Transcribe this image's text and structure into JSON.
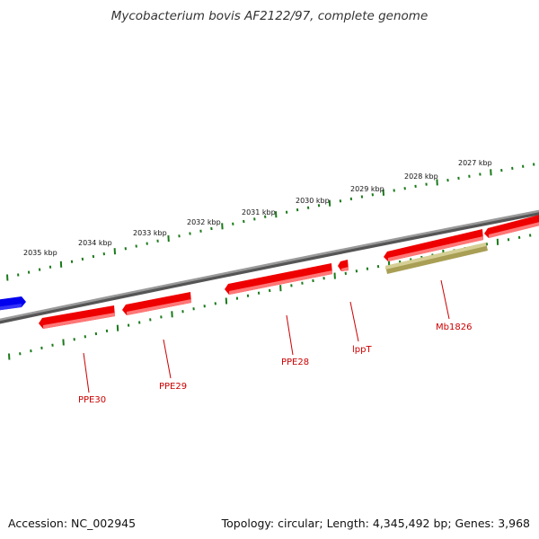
{
  "title": "Mycobacterium bovis AF2122/97, complete genome",
  "footer": {
    "accession": "Accession: NC_002945",
    "summary": "Topology: circular; Length: 4,345,492 bp; Genes: 3,968"
  },
  "colors": {
    "backbone": "#808080",
    "tick": "#1a7a1a",
    "gene_fill": "#ee0000",
    "gene_edge": "#ff8080",
    "gene_selected_fill": "#bfb56e",
    "gene_blue": "#0000ee",
    "label": "#cc0000"
  },
  "kbp_ticks": [
    {
      "label": "2027 kbp"
    },
    {
      "label": "2028 kbp"
    },
    {
      "label": "2029 kbp"
    },
    {
      "label": "2030 kbp"
    },
    {
      "label": "2031 kbp"
    },
    {
      "label": "2032 kbp"
    },
    {
      "label": "2033 kbp"
    },
    {
      "label": "2034 kbp"
    },
    {
      "label": "2035 kbp"
    }
  ],
  "genes": [
    {
      "name": "PPE30",
      "strand": "reverse"
    },
    {
      "name": "PPE29",
      "strand": "reverse"
    },
    {
      "name": "PPE28",
      "strand": "reverse"
    },
    {
      "name": "lppT",
      "strand": "reverse"
    },
    {
      "name": "Mb1826",
      "strand": "forward",
      "highlighted": true
    }
  ]
}
